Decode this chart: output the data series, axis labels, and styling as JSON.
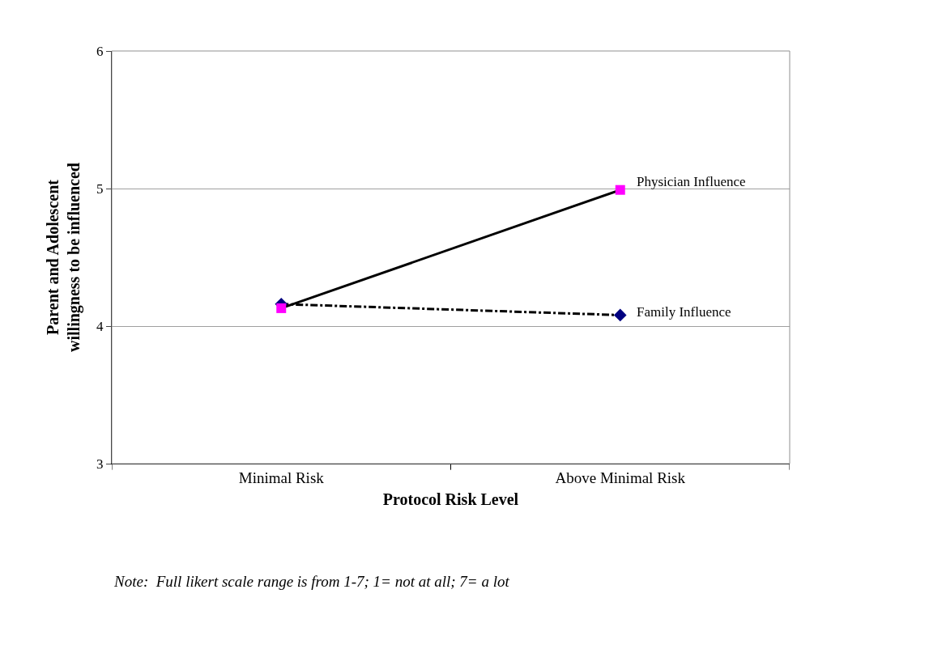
{
  "chart_data": {
    "type": "line",
    "xlabel": "Protocol Risk Level",
    "ylabel": "Parent and Adolescent willingness to be influenced",
    "categories": [
      "Minimal Risk",
      "Above Minimal Risk"
    ],
    "series": [
      {
        "name": "Family Influence",
        "color": "#000080",
        "marker": "diamond",
        "line_style": "dashed",
        "values": [
          4.16,
          4.08
        ]
      },
      {
        "name": "Physician Influence",
        "color": "#ff00ff",
        "marker": "square",
        "line_style": "solid",
        "values": [
          4.13,
          4.99
        ]
      }
    ],
    "ylim": [
      3,
      6
    ],
    "yticks": [
      3,
      4,
      5,
      6
    ],
    "grid": "y",
    "legend": false,
    "annotations": [
      "Note:  Full likert scale range is from 1-7; 1= not at all; 7= a lot"
    ]
  }
}
